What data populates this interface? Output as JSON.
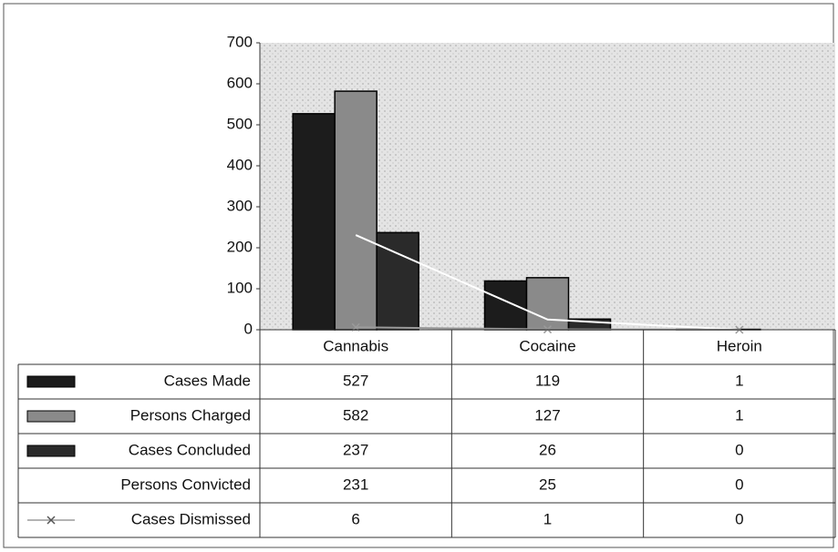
{
  "chart_data": {
    "type": "bar",
    "categories": [
      "Cannabis",
      "Cocaine",
      "Heroin"
    ],
    "series": [
      {
        "name": "Cases Made",
        "color": "#1c1c1c",
        "values": [
          527,
          119,
          1
        ]
      },
      {
        "name": "Persons Charged",
        "color": "#8a8a8a",
        "values": [
          582,
          127,
          1
        ]
      },
      {
        "name": "Cases Concluded",
        "color": "#2a2a2a",
        "values": [
          237,
          26,
          0
        ]
      },
      {
        "name": "Persons Convicted",
        "color": "#ffffff",
        "type": "line",
        "values": [
          231,
          25,
          0
        ]
      },
      {
        "name": "Cases Dismissed",
        "color": "#9a9a9a",
        "type": "line",
        "marker": "x",
        "values": [
          6,
          1,
          0
        ]
      }
    ],
    "ylim": [
      0,
      700
    ],
    "yticks": [
      0,
      100,
      200,
      300,
      400,
      500,
      600,
      700
    ]
  }
}
